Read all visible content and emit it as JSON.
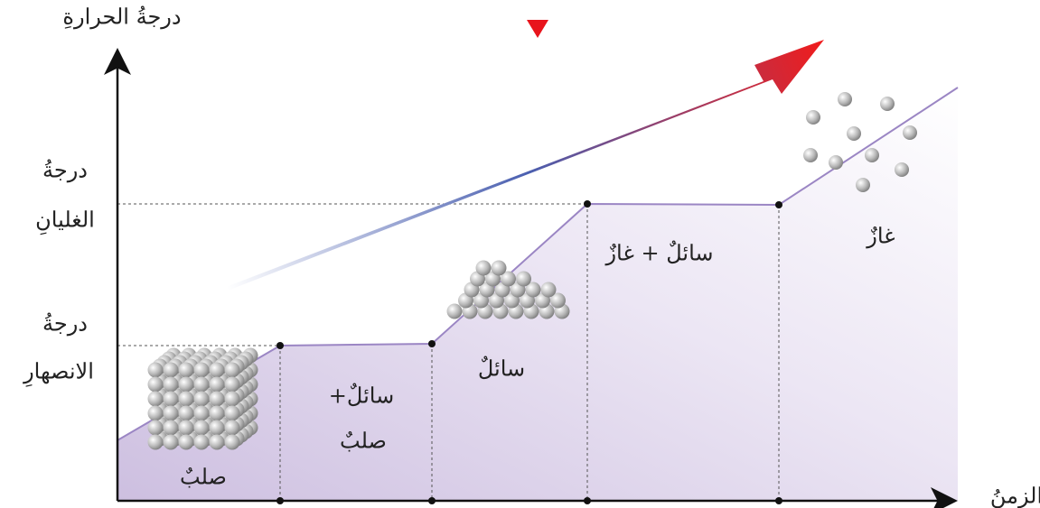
{
  "axes": {
    "y_label": "درجةُ الحرارةِ",
    "x_label": "الزمنُ"
  },
  "levels": {
    "boiling": [
      "درجةُ",
      "الغليانِ"
    ],
    "melting": [
      "درجةُ",
      "الانصهارِ"
    ]
  },
  "regions": {
    "solid": "صلبٌ",
    "solid_liquid": [
      "سائلٌ+",
      "صلبٌ"
    ],
    "liquid": "سائلٌ",
    "liquid_gas": "سائلٌ + غازٌ",
    "gas": "غازٌ"
  }
}
